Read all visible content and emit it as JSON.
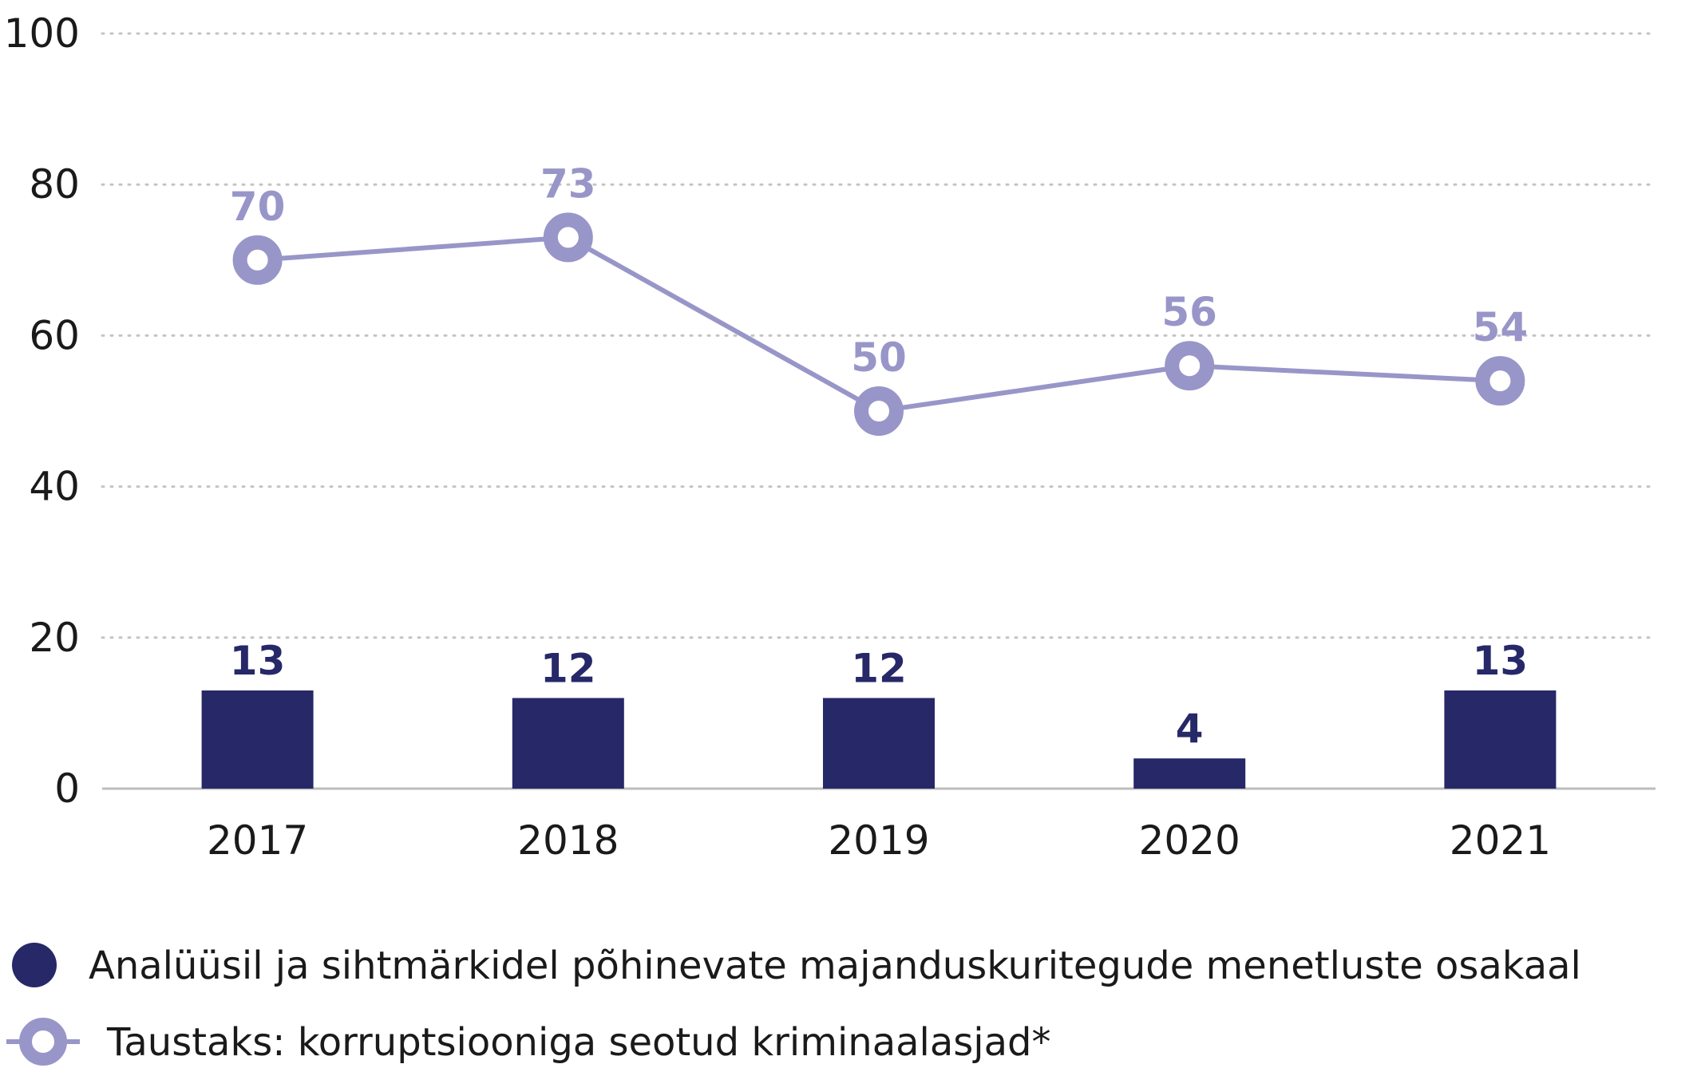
{
  "chart_data": {
    "type": "bar",
    "categories": [
      "2017",
      "2018",
      "2019",
      "2020",
      "2021"
    ],
    "series": [
      {
        "name": "Analüüsil ja sihtmärkidel põhinevate majanduskuritegude menetluste osakaal",
        "type": "bar",
        "values": [
          13,
          12,
          12,
          4,
          13
        ],
        "labels": [
          "13",
          "12",
          "12",
          "4",
          "13"
        ],
        "color": "#262868"
      },
      {
        "name": "Taustaks: korruptsiooniga seotud kriminaalasjad*",
        "type": "line",
        "values": [
          70,
          73,
          50,
          56,
          54
        ],
        "labels": [
          "70",
          "73",
          "50",
          "56",
          "54"
        ],
        "color": "#9896c8"
      }
    ],
    "y_ticks": [
      "0",
      "20",
      "40",
      "60",
      "80",
      "100"
    ],
    "ylim": [
      0,
      100
    ],
    "grid": true,
    "legend_position": "bottom",
    "title": "",
    "xlabel": "",
    "ylabel": ""
  }
}
